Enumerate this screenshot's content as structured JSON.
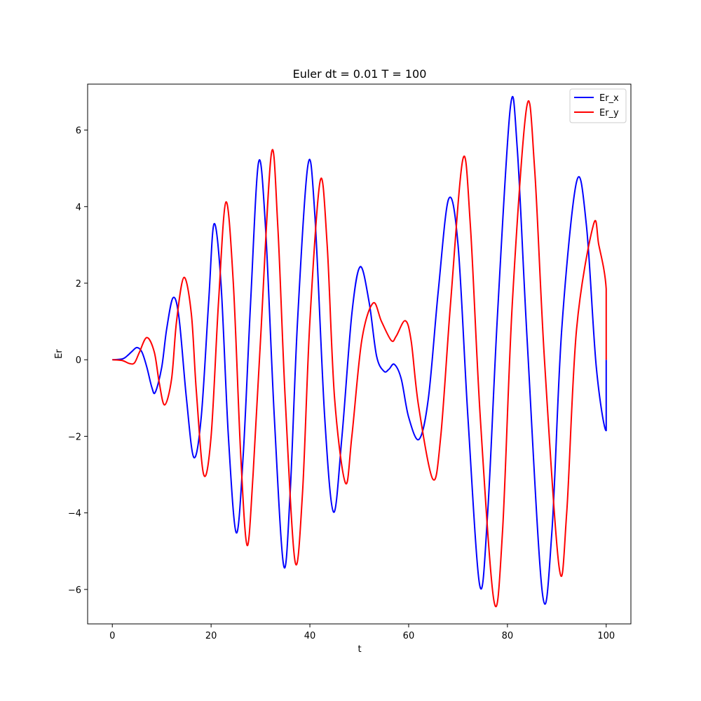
{
  "chart_data": {
    "type": "line",
    "title": "Euler dt = 0.01 T = 100",
    "xlabel": "t",
    "ylabel": "Er",
    "xlim": [
      -5,
      105
    ],
    "ylim": [
      -6.9,
      7.2
    ],
    "xticks": [
      0,
      20,
      40,
      60,
      80,
      100
    ],
    "yticks": [
      -6,
      -4,
      -2,
      0,
      2,
      4,
      6
    ],
    "ytick_labels": [
      "−6",
      "−4",
      "−2",
      "0",
      "2",
      "4",
      "6"
    ],
    "grid": false,
    "legend_position": "top-right",
    "series": [
      {
        "name": "Er_x",
        "color": "#0000ff",
        "x": [
          0,
          2,
          3,
          4,
          5,
          6,
          7,
          8,
          8.7,
          10,
          11,
          12.3,
          13.5,
          15,
          16.5,
          18,
          19.5,
          20.6,
          22,
          23.5,
          25.1,
          26.5,
          28,
          29.6,
          31,
          32.8,
          34.7,
          36,
          37.5,
          39.6,
          41,
          43,
          44.8,
          46.5,
          48.5,
          50.2,
          52,
          53.5,
          55,
          56,
          57.1,
          58.5,
          60,
          62.1,
          64,
          66,
          68.1,
          70,
          72,
          74.4,
          76,
          78,
          80.6,
          82,
          84,
          87.1,
          89,
          91,
          94,
          96,
          98,
          100,
          100
        ],
        "y": [
          0,
          0.02,
          0.1,
          0.22,
          0.32,
          0.2,
          -0.2,
          -0.72,
          -0.85,
          -0.2,
          0.8,
          1.62,
          1.1,
          -1.0,
          -2.55,
          -1.5,
          1.5,
          3.55,
          2.0,
          -2.0,
          -4.52,
          -2.5,
          1.5,
          5.15,
          3.5,
          -1.5,
          -5.38,
          -3.5,
          1.0,
          5.08,
          3.8,
          -1.5,
          -3.98,
          -2.0,
          1.2,
          2.43,
          1.5,
          0.1,
          -0.3,
          -0.25,
          -0.12,
          -0.5,
          -1.5,
          -2.08,
          -1.0,
          1.8,
          4.2,
          3.0,
          -1.5,
          -5.9,
          -4.0,
          1.2,
          6.6,
          5.5,
          0.5,
          -6.12,
          -4.5,
          0.8,
          4.65,
          3.5,
          -0.2,
          -1.85,
          0
        ]
      },
      {
        "name": "Er_y",
        "color": "#ff0000",
        "x": [
          0,
          2,
          3.5,
          4.5,
          5.5,
          7,
          8.5,
          9.5,
          10.6,
          12,
          13,
          14.5,
          16,
          17,
          18.5,
          20,
          21.5,
          23,
          24.5,
          26,
          27.3,
          28.5,
          30,
          32.2,
          33.5,
          35,
          37,
          38.5,
          40,
          42.1,
          43.5,
          45,
          47.2,
          48.5,
          50.5,
          52.8,
          54.5,
          56.5,
          57.5,
          59.3,
          60.5,
          62,
          64.9,
          66.5,
          68.5,
          71,
          72.5,
          74.5,
          77.3,
          79,
          81,
          83.9,
          85.5,
          87.5,
          90.5,
          92,
          94,
          97.4,
          98.5,
          100,
          100
        ],
        "y": [
          0,
          -0.02,
          -0.1,
          -0.08,
          0.2,
          0.58,
          0.2,
          -0.6,
          -1.18,
          -0.5,
          1.0,
          2.15,
          1.2,
          -0.8,
          -3.0,
          -2.0,
          1.5,
          4.12,
          2.0,
          -2.5,
          -4.85,
          -3.0,
          0.5,
          5.38,
          3.5,
          -1.0,
          -5.27,
          -3.5,
          1.0,
          4.68,
          3.0,
          -1.0,
          -3.22,
          -2.0,
          0.5,
          1.48,
          1.0,
          0.5,
          0.62,
          1.02,
          0.5,
          -1.2,
          -3.12,
          -2.0,
          1.5,
          5.25,
          3.5,
          -1.5,
          -6.32,
          -4.5,
          1.5,
          6.6,
          5.0,
          0.0,
          -5.45,
          -4.0,
          0.8,
          3.52,
          3.0,
          1.85,
          0
        ]
      }
    ]
  }
}
